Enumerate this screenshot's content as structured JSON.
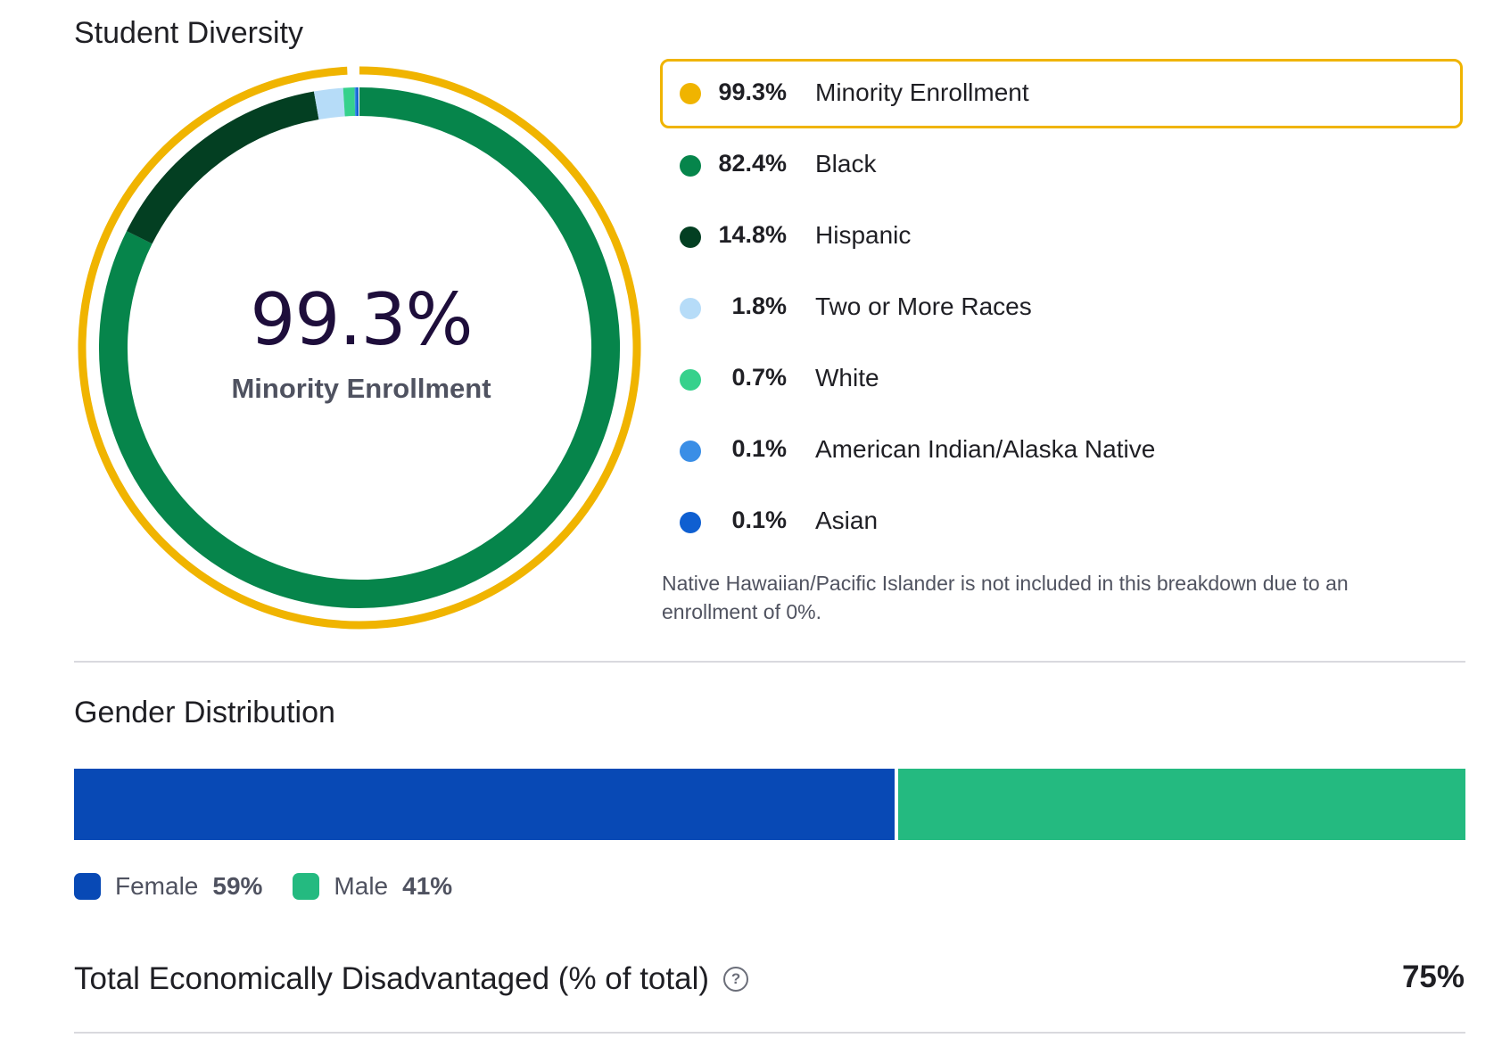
{
  "student_diversity": {
    "title": "Student Diversity",
    "center_value": "99.3%",
    "center_label": "Minority Enrollment",
    "legend": [
      {
        "pct": "99.3%",
        "name": "Minority Enrollment",
        "color": "#f0b400"
      },
      {
        "pct": "82.4%",
        "name": "Black",
        "color": "#06854b"
      },
      {
        "pct": "14.8%",
        "name": "Hispanic",
        "color": "#033f22"
      },
      {
        "pct": "1.8%",
        "name": "Two or More Races",
        "color": "#b6dcf8"
      },
      {
        "pct": "0.7%",
        "name": "White",
        "color": "#36d18c"
      },
      {
        "pct": "0.1%",
        "name": "American Indian/Alaska Native",
        "color": "#3a8ee6"
      },
      {
        "pct": "0.1%",
        "name": "Asian",
        "color": "#0f5fd1"
      }
    ],
    "footnote": "Native Hawaiian/Pacific Islander is not included in this breakdown due to an enrollment of 0%."
  },
  "gender_distribution": {
    "title": "Gender Distribution",
    "female": {
      "label": "Female",
      "pct": "59%",
      "value": 59,
      "color": "#0849b5"
    },
    "male": {
      "label": "Male",
      "pct": "41%",
      "value": 41,
      "color": "#24ba80"
    }
  },
  "economically_disadvantaged": {
    "label": "Total Economically Disadvantaged (% of total)",
    "value": "75%",
    "help_icon": "?"
  },
  "chart_data": [
    {
      "type": "pie",
      "title": "Student Diversity",
      "outer_ring": {
        "name": "Minority Enrollment",
        "value": 99.3,
        "color": "#f0b400"
      },
      "categories": [
        "Black",
        "Hispanic",
        "Two or More Races",
        "White",
        "American Indian/Alaska Native",
        "Asian"
      ],
      "values": [
        82.4,
        14.8,
        1.8,
        0.7,
        0.1,
        0.1
      ],
      "colors": [
        "#06854b",
        "#033f22",
        "#b6dcf8",
        "#36d18c",
        "#3a8ee6",
        "#0f5fd1"
      ]
    },
    {
      "type": "bar",
      "title": "Gender Distribution",
      "categories": [
        "Female",
        "Male"
      ],
      "values": [
        59,
        41
      ],
      "colors": [
        "#0849b5",
        "#24ba80"
      ]
    }
  ]
}
